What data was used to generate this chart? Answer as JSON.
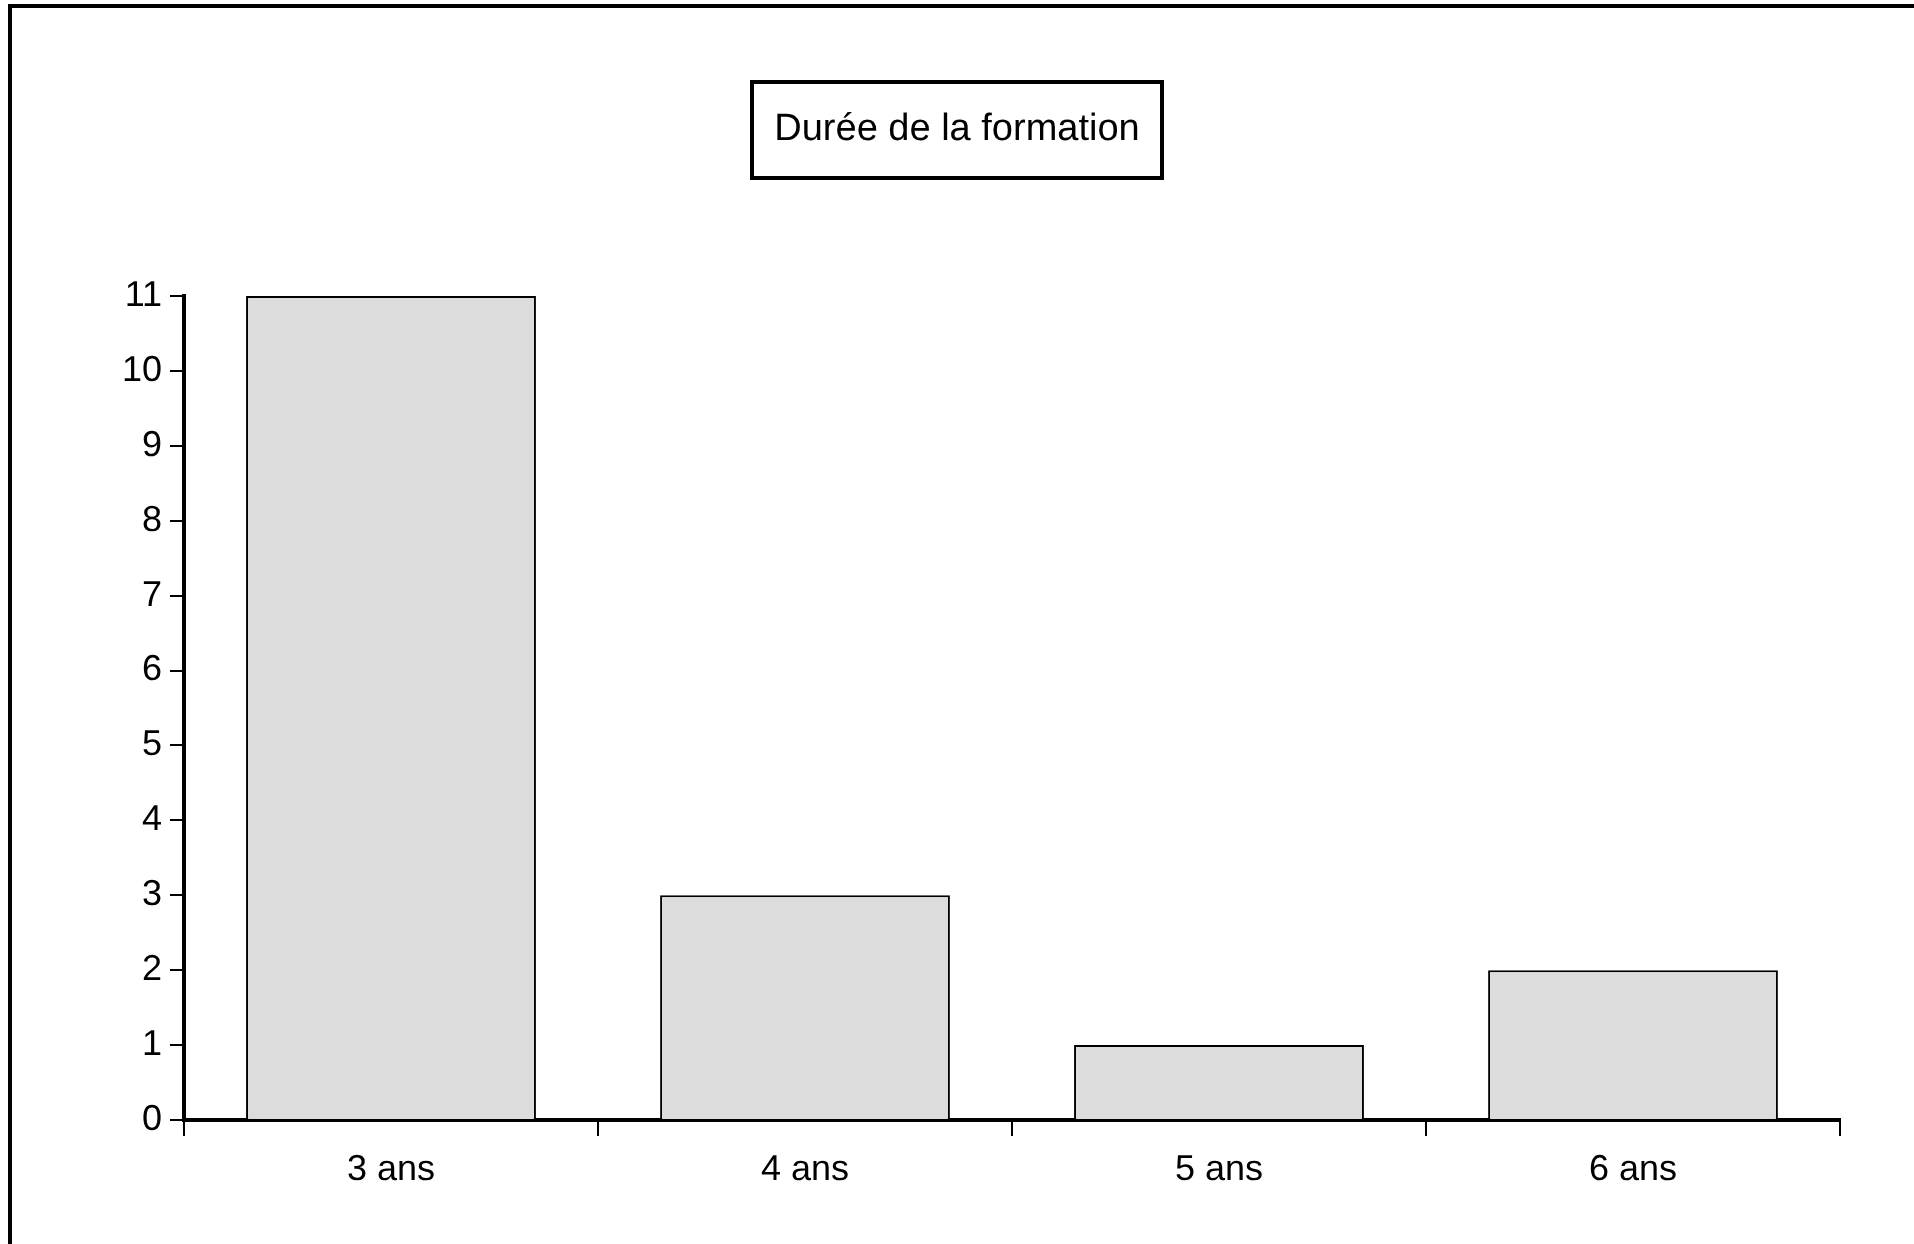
{
  "chart_data": {
    "type": "bar",
    "title": "Durée de la formation",
    "categories": [
      "3 ans",
      "4 ans",
      "5 ans",
      "6 ans"
    ],
    "values": [
      11,
      3,
      1,
      2
    ],
    "color": "#dcdcdc",
    "ylim": [
      0,
      11
    ],
    "yticks": [
      0,
      1,
      2,
      3,
      4,
      5,
      6,
      7,
      8,
      9,
      10,
      11
    ]
  }
}
